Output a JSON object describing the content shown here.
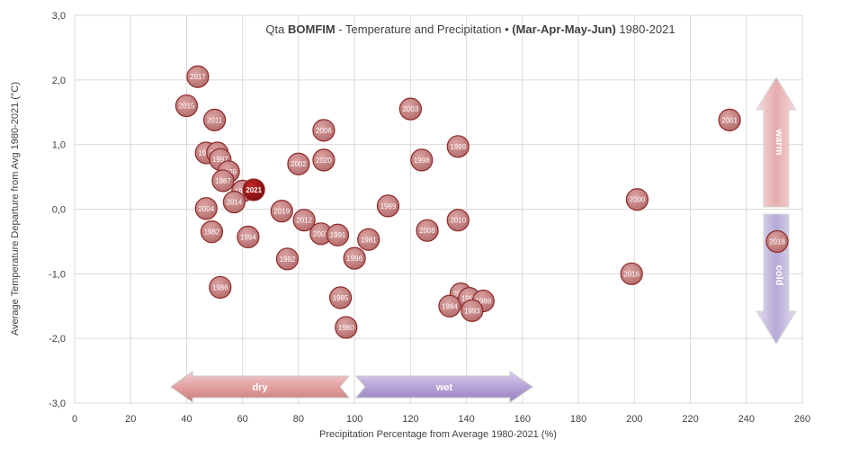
{
  "chart_data": {
    "type": "scatter",
    "title_parts": [
      {
        "text": "Qta ",
        "bold": false
      },
      {
        "text": "BOMFIM",
        "bold": true
      },
      {
        "text": " - Temperature and Precipitation • ",
        "bold": false
      },
      {
        "text": "(Mar-Apr-May-Jun)",
        "bold": true
      },
      {
        "text": " 1980-2021",
        "bold": false
      }
    ],
    "xlabel": "Precipitation Percentage from Average 1980-2021 (%)",
    "ylabel": "Average Temperature Departure from Avg 1980-2021 (°C)",
    "xlim": [
      0,
      260
    ],
    "ylim": [
      -3,
      3
    ],
    "xticks": [
      0,
      20,
      40,
      60,
      80,
      100,
      120,
      140,
      160,
      180,
      200,
      220,
      240,
      260
    ],
    "yticks": [
      3,
      2,
      1,
      0,
      -1,
      -2,
      -3
    ],
    "ytick_labels": [
      "3,0",
      "2,0",
      "1,0",
      "0,0",
      "-1,0",
      "-2,0",
      "-3,0"
    ],
    "grid": true,
    "points": [
      {
        "label": "2017",
        "x": 44,
        "y": 2.05
      },
      {
        "label": "2015",
        "x": 40,
        "y": 1.6
      },
      {
        "label": "2011",
        "x": 50,
        "y": 1.38
      },
      {
        "label": "2006",
        "x": 89,
        "y": 1.22
      },
      {
        "label": "2003",
        "x": 120,
        "y": 1.55
      },
      {
        "label": "2001",
        "x": 234,
        "y": 1.38
      },
      {
        "label": "1999",
        "x": 137,
        "y": 0.97
      },
      {
        "label": "1998",
        "x": 124,
        "y": 0.76
      },
      {
        "label": "1983",
        "x": 47,
        "y": 0.87
      },
      {
        "label": "2005",
        "x": 51,
        "y": 0.87
      },
      {
        "label": "1997",
        "x": 52,
        "y": 0.77
      },
      {
        "label": "2009",
        "x": 55,
        "y": 0.58
      },
      {
        "label": "1987",
        "x": 53,
        "y": 0.44
      },
      {
        "label": "2002",
        "x": 80,
        "y": 0.7
      },
      {
        "label": "2020",
        "x": 89,
        "y": 0.76
      },
      {
        "label": "1989",
        "x": 60,
        "y": 0.28
      },
      {
        "label": "2021",
        "x": 64,
        "y": 0.3
      },
      {
        "label": "2014",
        "x": 57,
        "y": 0.11
      },
      {
        "label": "2004",
        "x": 47,
        "y": 0.01
      },
      {
        "label": "1989",
        "x": 112,
        "y": 0.05
      },
      {
        "label": "2000",
        "x": 201,
        "y": 0.15
      },
      {
        "label": "2019",
        "x": 74,
        "y": -0.03
      },
      {
        "label": "2012",
        "x": 82,
        "y": -0.17
      },
      {
        "label": "2010",
        "x": 137,
        "y": -0.17
      },
      {
        "label": "1982",
        "x": 49,
        "y": -0.35
      },
      {
        "label": "1994",
        "x": 62,
        "y": -0.43
      },
      {
        "label": "2007",
        "x": 88,
        "y": -0.38
      },
      {
        "label": "1991",
        "x": 94,
        "y": -0.4
      },
      {
        "label": "2008",
        "x": 126,
        "y": -0.33
      },
      {
        "label": "1981",
        "x": 105,
        "y": -0.47
      },
      {
        "label": "2018",
        "x": 251,
        "y": -0.5
      },
      {
        "label": "1992",
        "x": 76,
        "y": -0.77
      },
      {
        "label": "1996",
        "x": 100,
        "y": -0.76
      },
      {
        "label": "2016",
        "x": 199,
        "y": -1.0
      },
      {
        "label": "1986",
        "x": 52,
        "y": -1.21
      },
      {
        "label": "2013",
        "x": 138,
        "y": -1.31
      },
      {
        "label": "1995",
        "x": 141,
        "y": -1.38
      },
      {
        "label": "1988",
        "x": 146,
        "y": -1.42
      },
      {
        "label": "1985",
        "x": 95,
        "y": -1.37
      },
      {
        "label": "1984",
        "x": 134,
        "y": -1.5
      },
      {
        "label": "1993",
        "x": 142,
        "y": -1.57
      },
      {
        "label": "1980",
        "x": 97,
        "y": -1.83
      }
    ],
    "highlight_label": "2021",
    "colors": {
      "bubble_fill": "#c98a8a",
      "bubble_stroke": "#8e2a2a",
      "highlight_fill": "#a01818",
      "grid": "#d9d9d9",
      "dry_arrow": "#e3a3a3",
      "wet_arrow": "#b9a6d6",
      "warm_arrow": "#e8b4b4",
      "cold_arrow": "#bdb3d8"
    },
    "annotations": {
      "dry": "dry",
      "wet": "wet",
      "warm": "warm",
      "cold": "cold"
    }
  }
}
